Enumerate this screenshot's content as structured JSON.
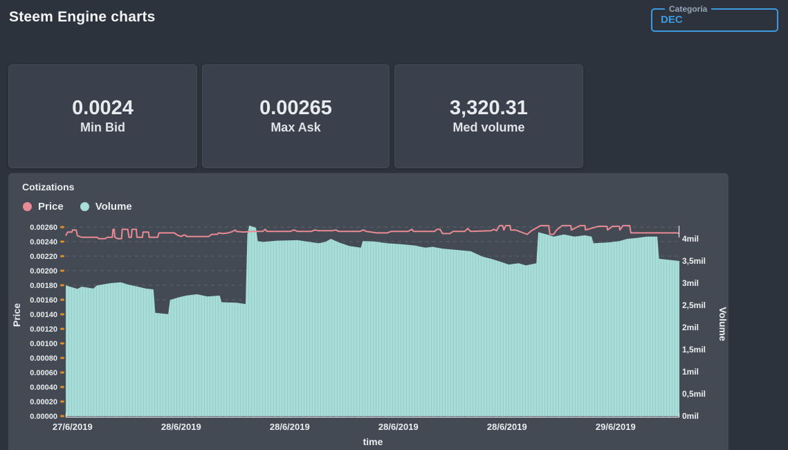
{
  "page": {
    "title": "Steem Engine charts"
  },
  "category_select": {
    "label": "Categoría",
    "value": "DEC",
    "accent_color": "#3f9be0"
  },
  "stats": [
    {
      "value": "0.0024",
      "label": "Min Bid"
    },
    {
      "value": "0.00265",
      "label": "Max Ask"
    },
    {
      "value": "3,320.31",
      "label": "Med volume"
    }
  ],
  "chart_data": {
    "type": "area",
    "subtype": "dual-axis price line + volume area (stepped)",
    "title": "Cotizations",
    "legend": [
      {
        "name": "Price",
        "color": "#e98b94"
      },
      {
        "name": "Volume",
        "color": "#a7ded9"
      }
    ],
    "x_axis": {
      "label": "time",
      "tick_labels": [
        "27/6/2019",
        "28/6/2019",
        "28/6/2019",
        "28/6/2019",
        "28/6/2019",
        "29/6/2019"
      ],
      "tick_positions": [
        0.011,
        0.188,
        0.365,
        0.542,
        0.719,
        0.896
      ]
    },
    "y_axis_left": {
      "label": "Price",
      "min": 0,
      "max": 0.0026,
      "tick_step": 0.0002,
      "grid": "dashed",
      "tick_labels": [
        "0.00000",
        "0.00020",
        "0.00040",
        "0.00060",
        "0.00080",
        "0.00100",
        "0.00120",
        "0.00140",
        "0.00160",
        "0.00180",
        "0.00200",
        "0.00220",
        "0.00240",
        "0.00260"
      ],
      "tick_color": "#dd8d2a"
    },
    "y_axis_right": {
      "label": "Volume",
      "min": 0,
      "max": 4000000,
      "unit": "mil = millions",
      "tick_labels": [
        "0mil",
        "0,5mil",
        "1mil",
        "1,5mil",
        "2mil",
        "2,5mil",
        "3mil",
        "3,5mil",
        "4mil"
      ]
    },
    "series": [
      {
        "name": "Price",
        "axis": "left",
        "color": "#e98b94",
        "points": [
          [
            0.0,
            0.00248
          ],
          [
            0.003,
            0.00253
          ],
          [
            0.01,
            0.00253
          ],
          [
            0.011,
            0.00256
          ],
          [
            0.017,
            0.00256
          ],
          [
            0.019,
            0.00248
          ],
          [
            0.026,
            0.00246
          ],
          [
            0.051,
            0.00246
          ],
          [
            0.054,
            0.00244
          ],
          [
            0.064,
            0.00244
          ],
          [
            0.068,
            0.00246
          ],
          [
            0.076,
            0.00246
          ],
          [
            0.077,
            0.00257
          ],
          [
            0.079,
            0.00257
          ],
          [
            0.08,
            0.00246
          ],
          [
            0.085,
            0.00244
          ],
          [
            0.091,
            0.00244
          ],
          [
            0.092,
            0.00257
          ],
          [
            0.101,
            0.00257
          ],
          [
            0.103,
            0.00246
          ],
          [
            0.107,
            0.00246
          ],
          [
            0.108,
            0.00257
          ],
          [
            0.115,
            0.00257
          ],
          [
            0.116,
            0.00246
          ],
          [
            0.125,
            0.00246
          ],
          [
            0.126,
            0.00253
          ],
          [
            0.135,
            0.00253
          ],
          [
            0.136,
            0.00246
          ],
          [
            0.15,
            0.00246
          ],
          [
            0.152,
            0.00252
          ],
          [
            0.177,
            0.00252
          ],
          [
            0.182,
            0.00249
          ],
          [
            0.188,
            0.00247
          ],
          [
            0.192,
            0.00249
          ],
          [
            0.195,
            0.00249
          ],
          [
            0.197,
            0.00247
          ],
          [
            0.233,
            0.00247
          ],
          [
            0.238,
            0.0025
          ],
          [
            0.247,
            0.0025
          ],
          [
            0.249,
            0.00252
          ],
          [
            0.256,
            0.00251
          ],
          [
            0.265,
            0.00252
          ],
          [
            0.272,
            0.00254
          ],
          [
            0.276,
            0.00256
          ],
          [
            0.278,
            0.00254
          ],
          [
            0.29,
            0.00253
          ],
          [
            0.304,
            0.00254
          ],
          [
            0.321,
            0.00254
          ],
          [
            0.325,
            0.00257
          ],
          [
            0.328,
            0.00254
          ],
          [
            0.366,
            0.00254
          ],
          [
            0.372,
            0.00256
          ],
          [
            0.378,
            0.00254
          ],
          [
            0.4,
            0.00254
          ],
          [
            0.406,
            0.00256
          ],
          [
            0.412,
            0.00255
          ],
          [
            0.434,
            0.00255
          ],
          [
            0.44,
            0.00256
          ],
          [
            0.445,
            0.00254
          ],
          [
            0.479,
            0.00254
          ],
          [
            0.485,
            0.00256
          ],
          [
            0.49,
            0.00254
          ],
          [
            0.507,
            0.00252
          ],
          [
            0.524,
            0.00252
          ],
          [
            0.53,
            0.00254
          ],
          [
            0.558,
            0.00254
          ],
          [
            0.564,
            0.00257
          ],
          [
            0.567,
            0.00254
          ],
          [
            0.601,
            0.00254
          ],
          [
            0.605,
            0.00257
          ],
          [
            0.61,
            0.00257
          ],
          [
            0.614,
            0.00251
          ],
          [
            0.626,
            0.00251
          ],
          [
            0.631,
            0.00254
          ],
          [
            0.65,
            0.00254
          ],
          [
            0.655,
            0.00258
          ],
          [
            0.66,
            0.00254
          ],
          [
            0.693,
            0.00255
          ],
          [
            0.698,
            0.00257
          ],
          [
            0.702,
            0.00255
          ],
          [
            0.707,
            0.00262
          ],
          [
            0.712,
            0.00262
          ],
          [
            0.714,
            0.00256
          ],
          [
            0.717,
            0.00262
          ],
          [
            0.724,
            0.00262
          ],
          [
            0.725,
            0.00256
          ],
          [
            0.733,
            0.00256
          ],
          [
            0.752,
            0.0025
          ],
          [
            0.759,
            0.00255
          ],
          [
            0.774,
            0.00262
          ],
          [
            0.787,
            0.00262
          ],
          [
            0.789,
            0.0025
          ],
          [
            0.795,
            0.0025
          ],
          [
            0.8,
            0.00256
          ],
          [
            0.809,
            0.00262
          ],
          [
            0.823,
            0.00262
          ],
          [
            0.824,
            0.00256
          ],
          [
            0.838,
            0.00262
          ],
          [
            0.846,
            0.00262
          ],
          [
            0.847,
            0.00256
          ],
          [
            0.868,
            0.00261
          ],
          [
            0.882,
            0.00261
          ],
          [
            0.883,
            0.00256
          ],
          [
            0.891,
            0.00261
          ],
          [
            0.902,
            0.00261
          ],
          [
            0.903,
            0.00256
          ],
          [
            0.908,
            0.00262
          ],
          [
            0.919,
            0.00262
          ],
          [
            0.921,
            0.00252
          ],
          [
            0.996,
            0.00252
          ],
          [
            1.0,
            0.00251
          ]
        ]
      },
      {
        "name": "Volume",
        "axis": "right",
        "color": "#a7ded9",
        "unit": "millions",
        "points": [
          [
            0.0,
            2.95
          ],
          [
            0.019,
            2.87
          ],
          [
            0.026,
            2.92
          ],
          [
            0.045,
            2.88
          ],
          [
            0.051,
            2.95
          ],
          [
            0.073,
            3.0
          ],
          [
            0.09,
            3.02
          ],
          [
            0.101,
            2.97
          ],
          [
            0.118,
            2.92
          ],
          [
            0.13,
            2.88
          ],
          [
            0.143,
            2.86
          ],
          [
            0.146,
            2.33
          ],
          [
            0.167,
            2.3
          ],
          [
            0.17,
            2.62
          ],
          [
            0.184,
            2.68
          ],
          [
            0.197,
            2.72
          ],
          [
            0.214,
            2.75
          ],
          [
            0.231,
            2.7
          ],
          [
            0.251,
            2.72
          ],
          [
            0.254,
            2.57
          ],
          [
            0.278,
            2.56
          ],
          [
            0.293,
            2.53
          ],
          [
            0.296,
            4.1
          ],
          [
            0.299,
            4.3
          ],
          [
            0.31,
            4.25
          ],
          [
            0.313,
            3.95
          ],
          [
            0.321,
            3.93
          ],
          [
            0.344,
            3.96
          ],
          [
            0.378,
            3.97
          ],
          [
            0.412,
            3.9
          ],
          [
            0.423,
            3.93
          ],
          [
            0.432,
            4.0
          ],
          [
            0.445,
            3.92
          ],
          [
            0.462,
            3.84
          ],
          [
            0.481,
            3.8
          ],
          [
            0.484,
            3.95
          ],
          [
            0.502,
            3.94
          ],
          [
            0.524,
            3.9
          ],
          [
            0.547,
            3.88
          ],
          [
            0.569,
            3.85
          ],
          [
            0.586,
            3.8
          ],
          [
            0.598,
            3.82
          ],
          [
            0.614,
            3.78
          ],
          [
            0.637,
            3.75
          ],
          [
            0.66,
            3.72
          ],
          [
            0.679,
            3.6
          ],
          [
            0.693,
            3.55
          ],
          [
            0.705,
            3.5
          ],
          [
            0.722,
            3.42
          ],
          [
            0.738,
            3.45
          ],
          [
            0.75,
            3.4
          ],
          [
            0.767,
            3.45
          ],
          [
            0.77,
            4.15
          ],
          [
            0.784,
            4.1
          ],
          [
            0.795,
            4.05
          ],
          [
            0.812,
            4.1
          ],
          [
            0.829,
            4.05
          ],
          [
            0.846,
            4.08
          ],
          [
            0.857,
            4.05
          ],
          [
            0.86,
            3.9
          ],
          [
            0.885,
            3.92
          ],
          [
            0.902,
            3.95
          ],
          [
            0.915,
            4.0
          ],
          [
            0.93,
            4.02
          ],
          [
            0.947,
            4.05
          ],
          [
            0.964,
            4.05
          ],
          [
            0.967,
            3.55
          ],
          [
            0.981,
            3.53
          ],
          [
            1.0,
            3.5
          ]
        ]
      }
    ],
    "layout": {
      "legend_position": "top-left",
      "grid": "horizontal dashed, price axis only"
    }
  },
  "colors": {
    "page_bg": "#2d333d",
    "card_bg": "#3b414c",
    "panel_bg": "#434a54",
    "grid": "#5d6472",
    "axis_line": "#e8eaee",
    "tick_orange": "#dd8d2a",
    "price": "#e98b94",
    "volume": "#a7ded9",
    "accent_blue": "#3f9be0"
  }
}
